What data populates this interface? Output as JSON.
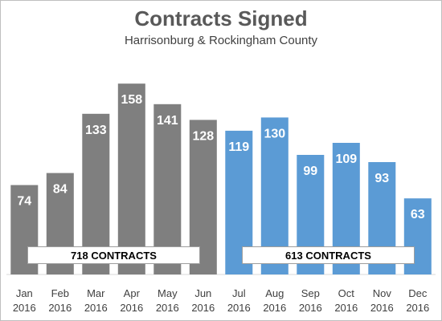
{
  "chart_data": {
    "type": "bar",
    "title": "Contracts Signed",
    "subtitle": "Harrisonburg & Rockingham County",
    "categories": [
      [
        "Jan",
        "2016"
      ],
      [
        "Feb",
        "2016"
      ],
      [
        "Mar",
        "2016"
      ],
      [
        "Apr",
        "2016"
      ],
      [
        "May",
        "2016"
      ],
      [
        "Jun",
        "2016"
      ],
      [
        "Jul",
        "2016"
      ],
      [
        "Aug",
        "2016"
      ],
      [
        "Sep",
        "2016"
      ],
      [
        "Oct",
        "2016"
      ],
      [
        "Nov",
        "2016"
      ],
      [
        "Dec",
        "2016"
      ]
    ],
    "values": [
      74,
      84,
      133,
      158,
      141,
      128,
      119,
      130,
      99,
      109,
      93,
      63
    ],
    "bar_colors": [
      "#7f7f7f",
      "#7f7f7f",
      "#7f7f7f",
      "#7f7f7f",
      "#7f7f7f",
      "#7f7f7f",
      "#5b9bd5",
      "#5b9bd5",
      "#5b9bd5",
      "#5b9bd5",
      "#5b9bd5",
      "#5b9bd5"
    ],
    "ylim": [
      0,
      175
    ],
    "grid": false,
    "legend": false,
    "group_labels": [
      {
        "text": "718 CONTRACTS",
        "start_index": 0,
        "end_index": 5
      },
      {
        "text": "613 CONTRACTS",
        "start_index": 6,
        "end_index": 11
      }
    ]
  }
}
